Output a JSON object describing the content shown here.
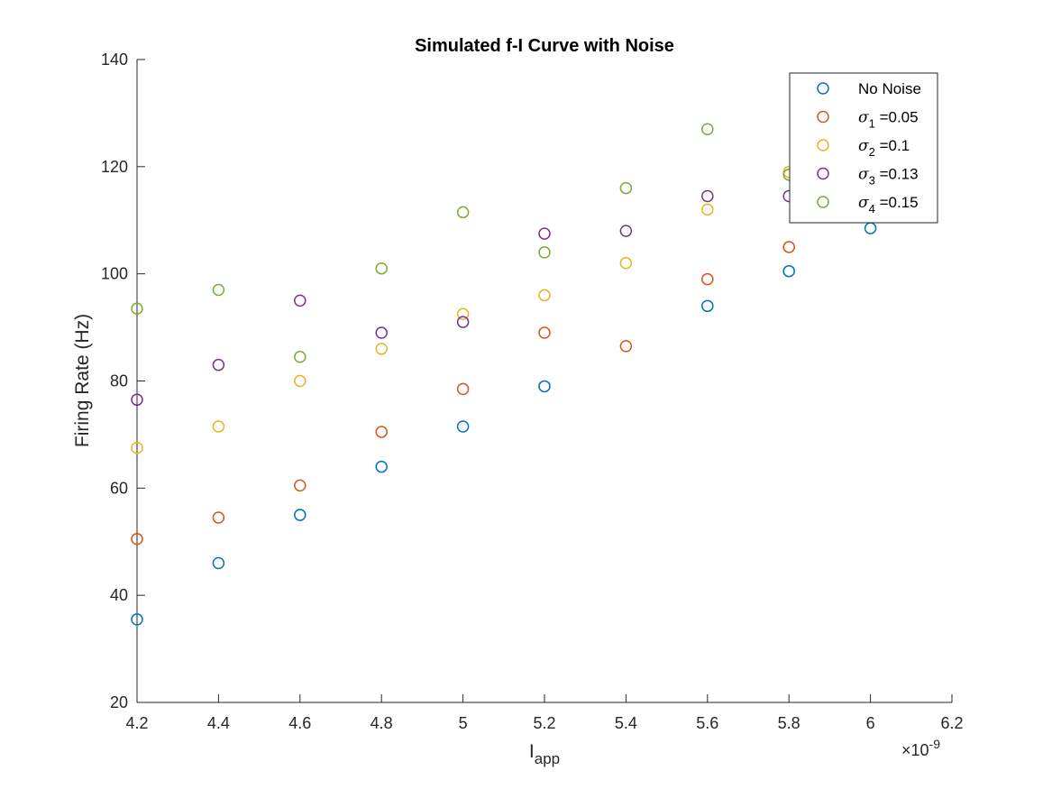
{
  "chart_data": {
    "type": "scatter",
    "title": "Simulated f-I Curve with Noise",
    "xlabel": {
      "main": "I",
      "sub": "app"
    },
    "ylabel": "Firing Rate (Hz)",
    "x_exponent_label": "×10",
    "x_exponent_power": "-9",
    "xlim": [
      4.2,
      6.2
    ],
    "ylim": [
      20,
      140
    ],
    "x_ticks": [
      "4.2",
      "4.4",
      "4.6",
      "4.8",
      "5",
      "5.2",
      "5.4",
      "5.6",
      "5.8",
      "6",
      "6.2"
    ],
    "y_ticks": [
      "20",
      "40",
      "60",
      "80",
      "100",
      "120",
      "140"
    ],
    "x_tick_values": [
      4.2,
      4.4,
      4.6,
      4.8,
      5.0,
      5.2,
      5.4,
      5.6,
      5.8,
      6.0,
      6.2
    ],
    "y_tick_values": [
      20,
      40,
      60,
      80,
      100,
      120,
      140
    ],
    "grid": false,
    "legend_position": "top-right",
    "marker": "open-circle",
    "x": [
      4.2,
      4.4,
      4.6,
      4.8,
      5.0,
      5.2,
      5.4,
      5.6,
      5.8,
      6.0
    ],
    "series": [
      {
        "name": "No Noise",
        "legend": {
          "text": "No Noise"
        },
        "color": "#0072BD",
        "values": [
          35.5,
          46,
          55,
          64,
          71.5,
          79,
          null,
          94,
          100.5,
          108.5
        ]
      },
      {
        "name": "σ1 =0.05",
        "legend": {
          "sym": "σ",
          "sub": "1",
          "text": " =0.05"
        },
        "color": "#D95319",
        "values": [
          50.5,
          54.5,
          60.5,
          70.5,
          78.5,
          89,
          86.5,
          99,
          105,
          null
        ]
      },
      {
        "name": "σ2 =0.1",
        "legend": {
          "sym": "σ",
          "sub": "2",
          "text": " =0.1"
        },
        "color": "#EDB120",
        "values": [
          67.5,
          71.5,
          80,
          86,
          92.5,
          96,
          102,
          112,
          119,
          null
        ]
      },
      {
        "name": "σ3 =0.13",
        "legend": {
          "sym": "σ",
          "sub": "3",
          "text": " =0.13"
        },
        "color": "#7E2F8E",
        "values": [
          76.5,
          83,
          95,
          89,
          91,
          107.5,
          108,
          114.5,
          114.5,
          null
        ]
      },
      {
        "name": "σ4 =0.15",
        "legend": {
          "sym": "σ",
          "sub": "4",
          "text": " =0.15"
        },
        "color": "#77AC30",
        "values": [
          93.5,
          97,
          84.5,
          101,
          111.5,
          104,
          116,
          127,
          118.5,
          null
        ]
      }
    ]
  }
}
